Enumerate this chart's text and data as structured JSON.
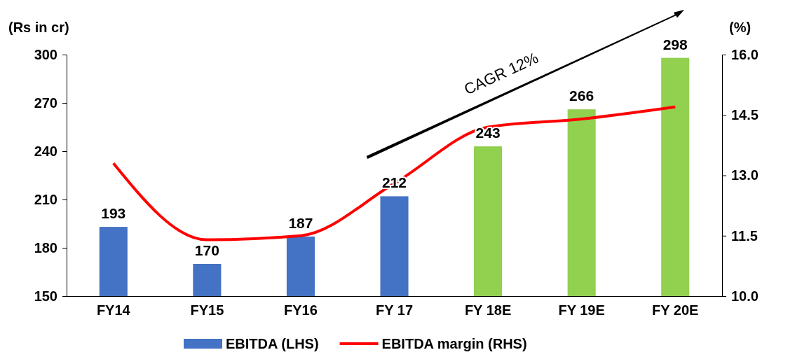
{
  "chart_data": {
    "type": "bar",
    "ylabel": "(Rs in cr)",
    "y2label": "(%)",
    "categories": [
      "FY14",
      "FY15",
      "FY16",
      "FY 17",
      "FY 18E",
      "FY 19E",
      "FY 20E"
    ],
    "series": [
      {
        "name": "EBITDA (LHS)",
        "color": "#4472c4",
        "colors": [
          "#4472c4",
          "#4472c4",
          "#4472c4",
          "#4472c4",
          "#92d050",
          "#92d050",
          "#92d050"
        ],
        "values": [
          193,
          170,
          187,
          212,
          243,
          266,
          298
        ],
        "value_labels": [
          "193",
          "170",
          "187",
          "212",
          "243",
          "266",
          "298"
        ]
      },
      {
        "name": "EBITDA margin (RHS)",
        "type": "line",
        "axis": "y2",
        "color": "#ff0000",
        "values": [
          13.3,
          11.4,
          11.5,
          12.8,
          14.2,
          14.4,
          14.7
        ]
      }
    ],
    "ylim": [
      150,
      300
    ],
    "yticks": [
      150,
      180,
      210,
      240,
      270,
      300
    ],
    "y2lim": [
      10,
      16
    ],
    "y2ticks": [
      {
        "value": 10,
        "label": "10.0"
      },
      {
        "value": 11.5,
        "label": "11.5"
      },
      {
        "value": 13,
        "label": "13.0"
      },
      {
        "value": 14.5,
        "label": "14.5"
      },
      {
        "value": 16,
        "label": "16.0"
      }
    ],
    "annotations": [
      "CAGR 12%"
    ],
    "legend": "bottom",
    "grid": false,
    "marker": "none",
    "line_style": "solid"
  }
}
